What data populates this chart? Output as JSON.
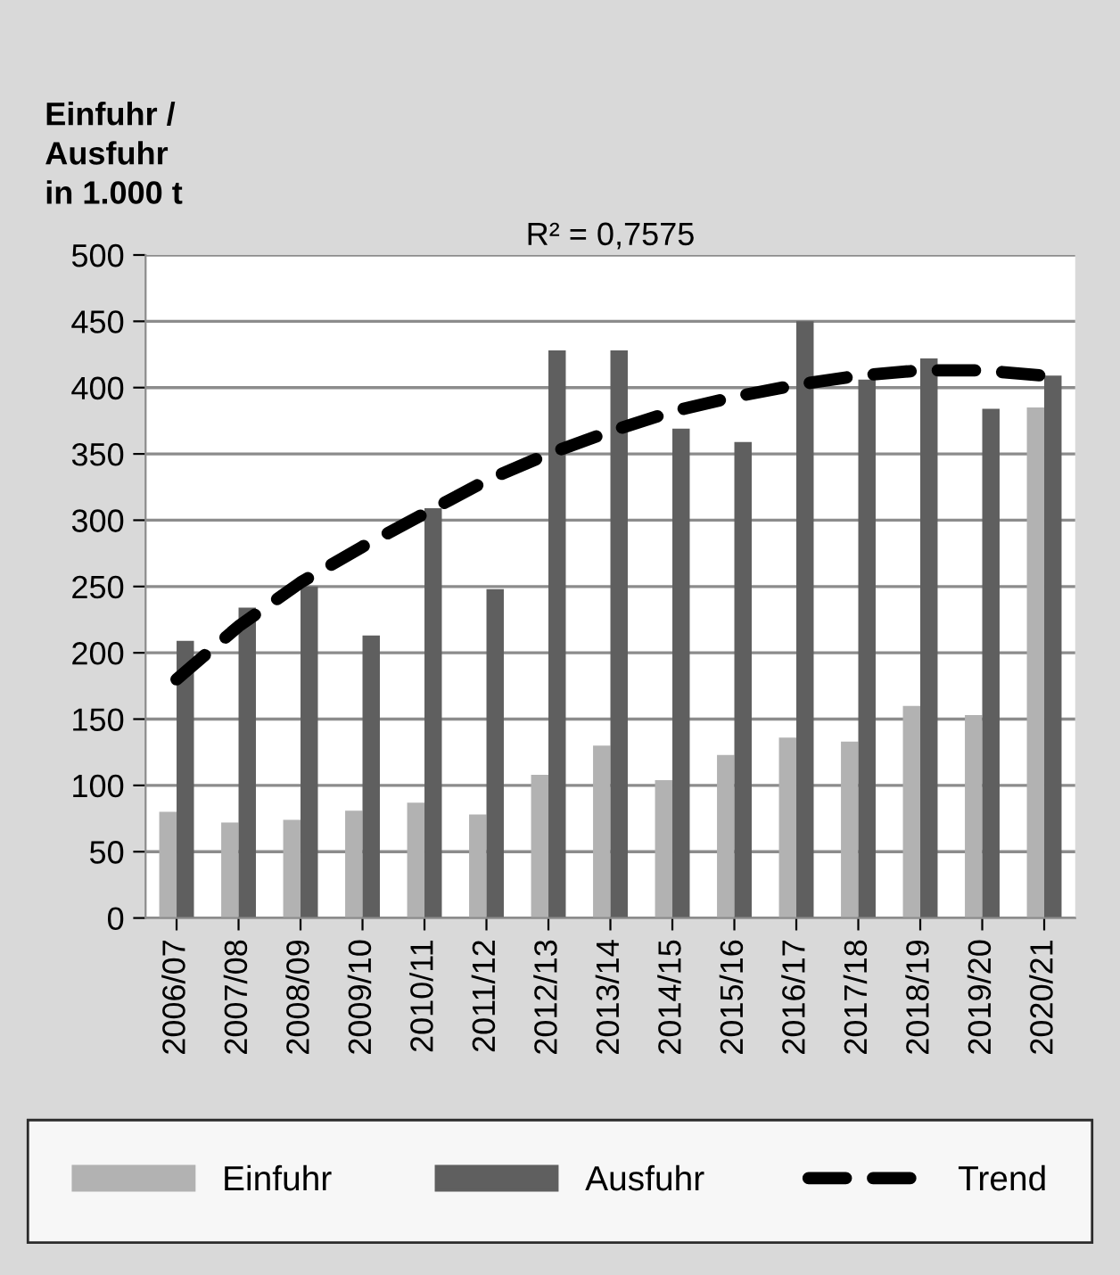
{
  "chart_data": {
    "type": "bar",
    "ylabel": "Einfuhr /\nAusfuhr\nin 1.000 t",
    "categories": [
      "2006/07",
      "2007/08",
      "2008/09",
      "2009/10",
      "2010/11",
      "2011/12",
      "2012/13",
      "2013/14",
      "2014/15",
      "2015/16",
      "2016/17",
      "2017/18",
      "2018/19",
      "2019/20",
      "2020/21"
    ],
    "series": [
      {
        "name": "Einfuhr",
        "color": "#b2b2b2",
        "values": [
          80,
          72,
          74,
          81,
          87,
          78,
          108,
          130,
          104,
          123,
          136,
          133,
          160,
          153,
          385
        ]
      },
      {
        "name": "Ausfuhr",
        "color": "#5f5f5f",
        "values": [
          209,
          234,
          250,
          213,
          309,
          248,
          428,
          428,
          369,
          359,
          450,
          406,
          422,
          384,
          409
        ]
      },
      {
        "name": "Trend",
        "type": "line",
        "color": "#000000",
        "line_style": "dashed",
        "x": [
          "2006/07",
          "2007/08",
          "2008/09",
          "2009/10",
          "2010/11",
          "2011/12",
          "2012/13",
          "2013/14",
          "2014/15",
          "2015/16",
          "2016/17",
          "2017/18",
          "2018/19",
          "2019/20",
          "2020/21"
        ],
        "values": [
          180,
          220,
          253,
          280,
          305,
          330,
          350,
          367,
          382,
          393,
          402,
          409,
          413,
          413,
          409
        ]
      }
    ],
    "annotations": [
      "R² = 0,7575"
    ],
    "ylim": [
      0,
      500
    ],
    "yticks": [
      0,
      50,
      100,
      150,
      200,
      250,
      300,
      350,
      400,
      450,
      500
    ],
    "grid": "y",
    "legend": "bottom"
  }
}
